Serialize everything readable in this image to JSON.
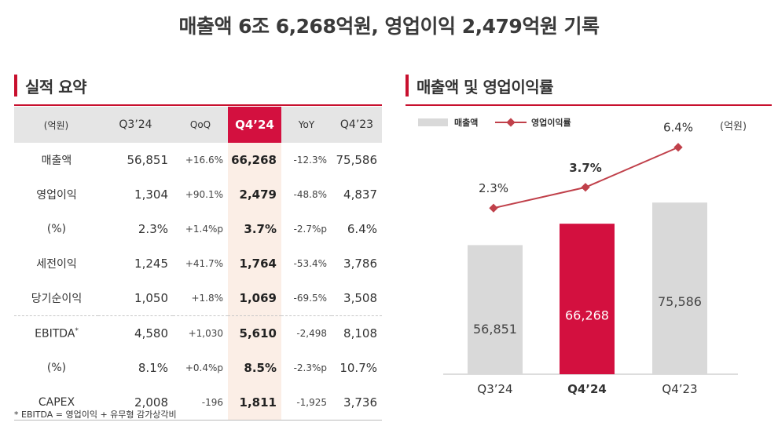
{
  "headline": "매출액 6조 6,268억원, 영업이익 2,479억원 기록",
  "left_section_title": "실적 요약",
  "right_section_title": "매출액 및 영업이익률",
  "table": {
    "headers": [
      "(억원)",
      "Q3’24",
      "QoQ",
      "Q4’24",
      "YoY",
      "Q4’23"
    ],
    "rows": [
      {
        "label": "매출액",
        "cells": [
          "56,851",
          "+16.6%",
          "66,268",
          "-12.3%",
          "75,586"
        ]
      },
      {
        "label": "영업이익",
        "cells": [
          "1,304",
          "+90.1%",
          "2,479",
          "-48.8%",
          "4,837"
        ]
      },
      {
        "label": "(%)",
        "cells": [
          "2.3%",
          "+1.4%p",
          "3.7%",
          "-2.7%p",
          "6.4%"
        ]
      },
      {
        "label": "세전이익",
        "cells": [
          "1,245",
          "+41.7%",
          "1,764",
          "-53.4%",
          "3,786"
        ]
      },
      {
        "label": "당기순이익",
        "cells": [
          "1,050",
          "+1.8%",
          "1,069",
          "-69.5%",
          "3,508"
        ]
      },
      {
        "label": "EBITDA",
        "sup": "*",
        "cells": [
          "4,580",
          "+1,030",
          "5,610",
          "-2,498",
          "8,108"
        ]
      },
      {
        "label": "(%)",
        "cells": [
          "8.1%",
          "+0.4%p",
          "8.5%",
          "-2.3%p",
          "10.7%"
        ]
      },
      {
        "label": "CAPEX",
        "cells": [
          "2,008",
          "-196",
          "1,811",
          "-1,925",
          "3,736"
        ]
      }
    ]
  },
  "footnote": "* EBITDA = 영업이익 + 유무형 감가상각비",
  "chart_data": {
    "type": "bar",
    "unit_label": "(억원)",
    "categories": [
      "Q3’24",
      "Q4’24",
      "Q4’23"
    ],
    "series": [
      {
        "name": "매출액",
        "type": "bar",
        "values": [
          56851,
          66268,
          75586
        ],
        "labels": [
          "56,851",
          "66,268",
          "75,586"
        ],
        "colors": [
          "#d9d9d9",
          "#d3103f",
          "#d9d9d9"
        ]
      },
      {
        "name": "영업이익률",
        "type": "line",
        "values": [
          2.3,
          3.7,
          6.4
        ],
        "labels": [
          "2.3%",
          "3.7%",
          "6.4%"
        ],
        "color": "#c0404a"
      }
    ],
    "highlight_index": 1,
    "legend_position": "top-left",
    "grid": false
  }
}
